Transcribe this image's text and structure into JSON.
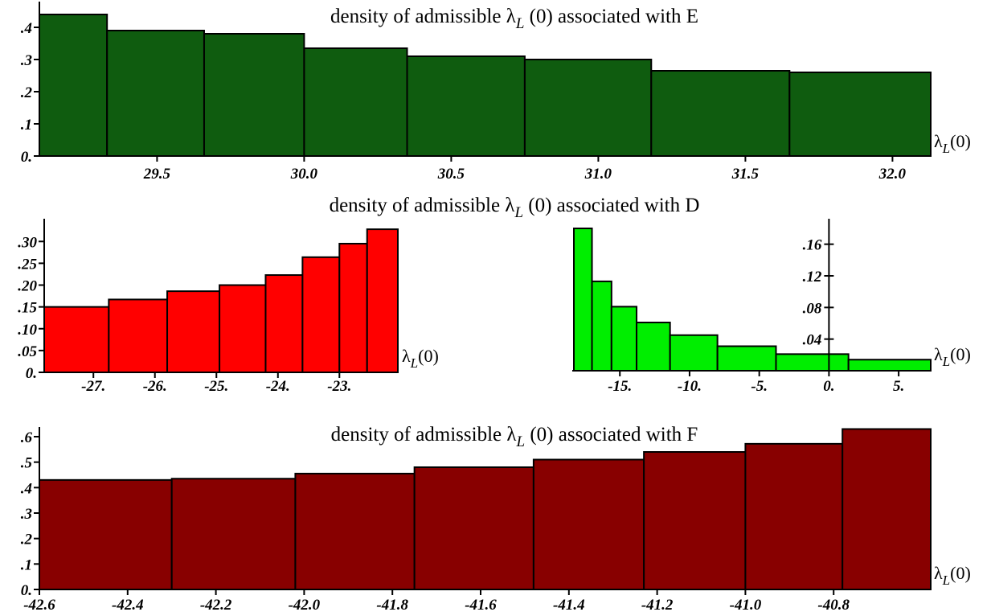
{
  "chart_data": [
    {
      "id": "E",
      "type": "bar",
      "title": "density of admissible λL (0) associated with E",
      "title_parts": {
        "pre": "density of admissible λ",
        "sub": "L",
        "post": " (0) associated with E"
      },
      "xlabel_parts": {
        "pre": "λ",
        "sub": "L",
        "post": "(0)"
      },
      "color": "#0f5c0f",
      "bin_edges": [
        29.1,
        29.33,
        29.66,
        30.0,
        30.35,
        30.75,
        31.18,
        31.65,
        32.13
      ],
      "values": [
        0.44,
        0.39,
        0.38,
        0.335,
        0.31,
        0.3,
        0.265,
        0.26
      ],
      "xlim": [
        29.1,
        32.13
      ],
      "ylim": [
        0,
        0.45
      ],
      "xticks": [
        29.5,
        30.0,
        30.5,
        31.0,
        31.5,
        32.0
      ],
      "xtick_labels": [
        "29.5",
        "30.0",
        "30.5",
        "31.0",
        "31.5",
        "32.0"
      ],
      "yticks": [
        0,
        0.1,
        0.2,
        0.3,
        0.4
      ],
      "ytick_labels": [
        "0.",
        ".1",
        ".2",
        ".3",
        ".4"
      ]
    },
    {
      "id": "D-left",
      "type": "bar",
      "title": "density of admissible λL (0) associated with D",
      "title_parts": {
        "pre": "density of admissible λ",
        "sub": "L",
        "post": " (0) associated with D"
      },
      "xlabel_parts": {
        "pre": "λ",
        "sub": "L",
        "post": "(0)"
      },
      "color": "#ff0000",
      "bin_edges": [
        -27.8,
        -26.75,
        -25.8,
        -24.95,
        -24.2,
        -23.6,
        -23.0,
        -22.55,
        -22.05
      ],
      "values": [
        0.15,
        0.167,
        0.186,
        0.2,
        0.223,
        0.264,
        0.295,
        0.328
      ],
      "xlim": [
        -27.8,
        -22.05
      ],
      "ylim": [
        0,
        0.33
      ],
      "xticks": [
        -27,
        -26,
        -25,
        -24,
        -23
      ],
      "xtick_labels": [
        "-27.",
        "-26.",
        "-25.",
        "-24.",
        "-23."
      ],
      "yticks": [
        0,
        0.05,
        0.1,
        0.15,
        0.2,
        0.25,
        0.3
      ],
      "ytick_labels": [
        "0.",
        ".05",
        ".10",
        ".15",
        ".20",
        ".25",
        ".30"
      ]
    },
    {
      "id": "D-right",
      "type": "bar",
      "title": "",
      "xlabel_parts": {
        "pre": "λ",
        "sub": "L",
        "post": "(0)"
      },
      "color": "#00ee00",
      "bin_edges": [
        -18.3,
        -17.0,
        -15.6,
        -13.8,
        -11.4,
        -8.0,
        -3.8,
        1.4,
        7.3
      ],
      "values": [
        0.18,
        0.113,
        0.081,
        0.061,
        0.045,
        0.031,
        0.021,
        0.014
      ],
      "xlim": [
        -18.3,
        7.3
      ],
      "ylim": [
        0,
        0.18
      ],
      "xticks": [
        -15,
        -10,
        -5,
        0,
        5
      ],
      "xtick_labels": [
        "-15.",
        "-10.",
        "-5.",
        "0.",
        "5."
      ],
      "yticks": [
        0.04,
        0.08,
        0.12,
        0.16
      ],
      "ytick_labels": [
        ".04",
        ".08",
        ".12",
        ".16"
      ]
    },
    {
      "id": "F",
      "type": "bar",
      "title": "density of admissible λL (0) associated with F",
      "title_parts": {
        "pre": "density of admissible λ",
        "sub": "L",
        "post": " (0) associated with F"
      },
      "xlabel_parts": {
        "pre": "λ",
        "sub": "L",
        "post": "(0)"
      },
      "color": "#880000",
      "bin_edges": [
        -42.6,
        -42.3,
        -42.02,
        -41.75,
        -41.48,
        -41.23,
        -41.0,
        -40.78,
        -40.58
      ],
      "values": [
        0.43,
        0.435,
        0.455,
        0.48,
        0.51,
        0.54,
        0.572,
        0.63
      ],
      "xlim": [
        -42.6,
        -40.58
      ],
      "ylim": [
        0,
        0.6
      ],
      "xticks": [
        -42.6,
        -42.4,
        -42.2,
        -42.0,
        -41.8,
        -41.6,
        -41.4,
        -41.2,
        -41.0,
        -40.8
      ],
      "xtick_labels": [
        "-42.6",
        "-42.4",
        "-42.2",
        "-42.0",
        "-41.8",
        "-41.6",
        "-41.4",
        "-41.2",
        "-41.0",
        "-40.8"
      ],
      "yticks": [
        0,
        0.1,
        0.2,
        0.3,
        0.4,
        0.5,
        0.6
      ],
      "ytick_labels": [
        "0.",
        ".1",
        ".2",
        ".3",
        ".4",
        ".5",
        ".6"
      ]
    }
  ]
}
